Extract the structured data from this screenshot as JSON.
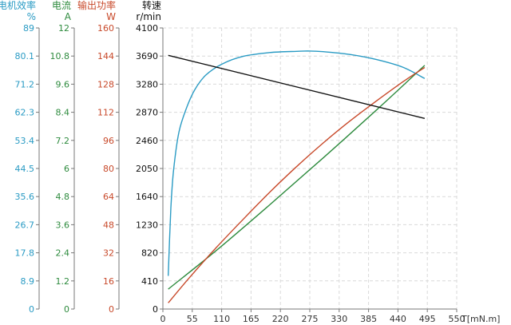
{
  "chart_data": {
    "type": "line",
    "x_axis": {
      "label": "T[mN.m]",
      "min": 0,
      "max": 550,
      "ticks": [
        0,
        55,
        110,
        165,
        220,
        275,
        330,
        385,
        440,
        495,
        550
      ]
    },
    "y_axes": [
      {
        "id": "efficiency",
        "title": "电机效率",
        "unit": "%",
        "min": 0,
        "max": 89,
        "ticks": [
          "0",
          "8.9",
          "17.8",
          "26.7",
          "35.6",
          "44.5",
          "53.4",
          "62.3",
          "71.2",
          "80.1",
          "89"
        ],
        "color": "#2a9bc4"
      },
      {
        "id": "current",
        "title": "电流",
        "unit": "A",
        "min": 0,
        "max": 12,
        "ticks": [
          "0",
          "1.2",
          "2.4",
          "3.6",
          "4.8",
          "6",
          "7.2",
          "8.4",
          "9.6",
          "10.8",
          "12"
        ],
        "color": "#2e8b3e"
      },
      {
        "id": "power",
        "title": "输出功率",
        "unit": "W",
        "min": 0,
        "max": 160,
        "ticks": [
          "0",
          "16",
          "32",
          "48",
          "64",
          "80",
          "96",
          "112",
          "128",
          "144",
          "160"
        ],
        "color": "#c8492a"
      },
      {
        "id": "speed",
        "title": "转速",
        "unit": "r/min",
        "min": 0,
        "max": 4100,
        "ticks": [
          "0",
          "410",
          "820",
          "1230",
          "1640",
          "2050",
          "2460",
          "2870",
          "3280",
          "3690",
          "4100"
        ],
        "color": "#111111"
      }
    ],
    "grid": true,
    "series": [
      {
        "axis": "efficiency",
        "color": "#2a9bc4",
        "x": [
          10,
          15,
          20,
          30,
          45,
          60,
          80,
          110,
          150,
          200,
          250,
          275,
          300,
          350,
          400,
          450,
          490
        ],
        "y": [
          10.5,
          32,
          44,
          56,
          64,
          69.5,
          74,
          77.5,
          80,
          81.2,
          81.6,
          81.7,
          81.5,
          80.6,
          79,
          76.5,
          73
        ]
      },
      {
        "axis": "current",
        "color": "#2e8b3e",
        "x": [
          10,
          100,
          200,
          300,
          400,
          490
        ],
        "y": [
          0.85,
          2.5,
          4.45,
          6.45,
          8.5,
          10.4
        ]
      },
      {
        "axis": "power",
        "color": "#c8492a",
        "x": [
          10,
          50,
          100,
          150,
          200,
          250,
          300,
          350,
          400,
          450,
          490
        ],
        "y": [
          3.5,
          18,
          35,
          51,
          66.5,
          81,
          94.5,
          107,
          118.5,
          129.5,
          137.5
        ]
      },
      {
        "axis": "speed",
        "color": "#111111",
        "x": [
          10,
          490
        ],
        "y": [
          3700,
          2780
        ]
      }
    ]
  }
}
